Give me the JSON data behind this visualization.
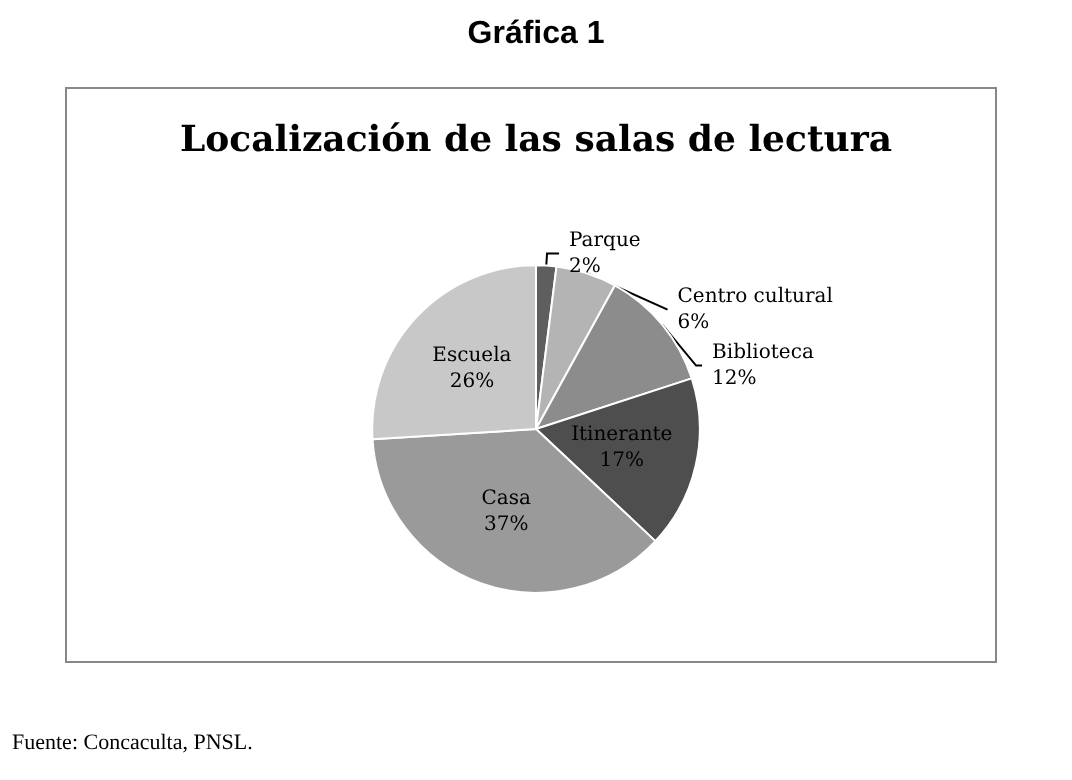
{
  "chart_data": {
    "type": "pie",
    "title": "Gráfica 1",
    "subtitle": "Localización de las salas de lectura",
    "categories": [
      "Parque",
      "Centro cultural",
      "Biblioteca",
      "Itinerante",
      "Casa",
      "Escuela"
    ],
    "values": [
      2,
      6,
      12,
      17,
      37,
      26
    ],
    "colors": [
      "#5e5e5e",
      "#b4b4b4",
      "#8c8c8c",
      "#4e4e4e",
      "#9a9a9a",
      "#c8c8c8"
    ],
    "value_labels": [
      "2%",
      "6%",
      "12%",
      "17%",
      "37%",
      "26%"
    ],
    "annotations": [
      "Fuente: Concaculta, PNSL."
    ]
  }
}
